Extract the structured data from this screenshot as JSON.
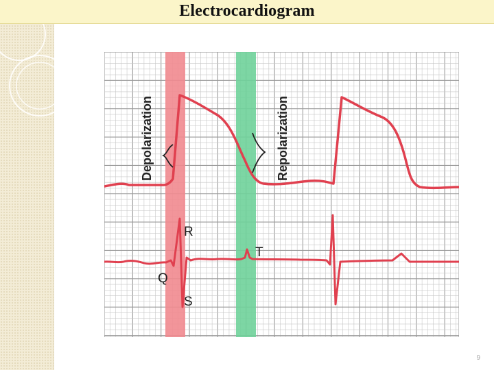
{
  "slide": {
    "title": "Electrocardiogram",
    "page_number": "9"
  },
  "diagram": {
    "labels": {
      "depolarization": "Depolarization",
      "repolarization": "Repolarization",
      "r": "R",
      "q": "Q",
      "s": "S",
      "t": "T"
    },
    "colors": {
      "trace": "#e0404f",
      "depolarization_band": "#f18a8f",
      "repolarization_band": "#6fd19a",
      "grid_minor": "#c7c7c7",
      "grid_major": "#9a9a9a",
      "title_bar": "#fbf5c9"
    }
  }
}
